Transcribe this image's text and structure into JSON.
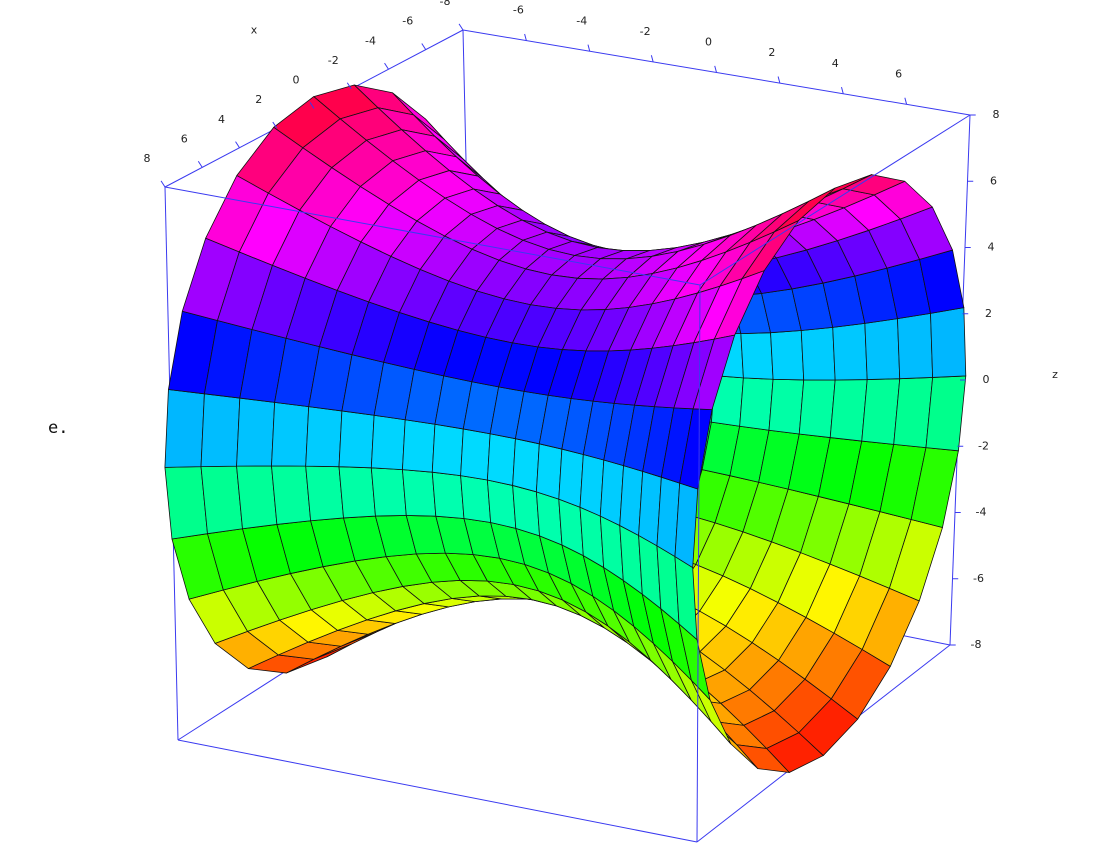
{
  "prefix": "e.",
  "chart_data": {
    "type": "surface",
    "x_label": "x",
    "z_label": "z",
    "xlim": [
      -8,
      8
    ],
    "ylim": [
      -8,
      8
    ],
    "zlim": [
      -8,
      8
    ],
    "xticks": [
      8,
      6,
      4,
      2,
      0,
      -2,
      -4,
      -6,
      -8
    ],
    "yticks": [
      -6,
      -4,
      -2,
      0,
      2,
      4,
      6
    ],
    "zticks": [
      8,
      6,
      4,
      2,
      0,
      -2,
      -4,
      -6,
      -8
    ],
    "box_color": "#3a3af0"
  }
}
